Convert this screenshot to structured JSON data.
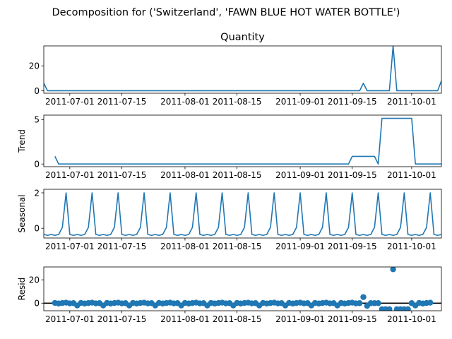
{
  "figure": {
    "suptitle": "Decomposition for ('Switzerland', 'FAWN BLUE HOT WATER BOTTLE')"
  },
  "colors": {
    "line": "#1f77b4",
    "axis": "#000000",
    "zero_line": "#000000"
  },
  "chart_data": [
    {
      "type": "line",
      "title": "Quantity",
      "ylabel": "",
      "x_start": "2011-06-24",
      "x_end": "2011-10-09",
      "xtick_labels": [
        "2011-07-01",
        "2011-07-15",
        "2011-08-01",
        "2011-08-15",
        "2011-09-01",
        "2011-09-15",
        "2011-10-01"
      ],
      "ylim": [
        -2,
        36
      ],
      "ytick_labels": [
        "0",
        "20"
      ],
      "series": [
        {
          "name": "",
          "points": [
            [
              "2011-06-24",
              6
            ],
            [
              "2011-06-25",
              0
            ],
            [
              "2011-09-17",
              0
            ],
            [
              "2011-09-18",
              6
            ],
            [
              "2011-09-19",
              0
            ],
            [
              "2011-09-25",
              0
            ],
            [
              "2011-09-26",
              36
            ],
            [
              "2011-09-27",
              0
            ],
            [
              "2011-10-08",
              0
            ],
            [
              "2011-10-09",
              8
            ]
          ]
        }
      ]
    },
    {
      "type": "line",
      "title": "",
      "ylabel": "Trend",
      "x_start": "2011-06-24",
      "x_end": "2011-10-09",
      "xtick_labels": [
        "2011-07-01",
        "2011-07-15",
        "2011-08-01",
        "2011-08-15",
        "2011-09-01",
        "2011-09-15",
        "2011-10-01"
      ],
      "ylim": [
        -0.3,
        5.5
      ],
      "ytick_labels": [
        "0",
        "5"
      ],
      "series": [
        {
          "name": "",
          "points": [
            [
              "2011-06-27",
              0.86
            ],
            [
              "2011-06-28",
              0
            ],
            [
              "2011-09-14",
              0
            ],
            [
              "2011-09-15",
              0.86
            ],
            [
              "2011-09-21",
              0.86
            ],
            [
              "2011-09-22",
              0
            ],
            [
              "2011-09-23",
              5.14
            ],
            [
              "2011-10-01",
              5.14
            ],
            [
              "2011-10-02",
              0
            ],
            [
              "2011-10-11",
              0
            ],
            [
              "2011-10-12",
              1.14
            ]
          ]
        }
      ]
    },
    {
      "type": "line",
      "title": "",
      "ylabel": "Seasonal",
      "x_start": "2011-06-24",
      "x_end": "2011-10-09",
      "xtick_labels": [
        "2011-07-01",
        "2011-07-15",
        "2011-08-01",
        "2011-08-15",
        "2011-09-01",
        "2011-09-15",
        "2011-10-01"
      ],
      "ylim": [
        -0.55,
        2.2
      ],
      "ytick_labels": [
        "0",
        "2"
      ],
      "weekly_pattern": [
        -0.35,
        -0.4,
        -0.35,
        -0.4,
        -0.35,
        0.05,
        2.0
      ],
      "pattern_start": "2011-06-24",
      "series": [
        {
          "name": ""
        }
      ]
    },
    {
      "type": "scatter",
      "title": "",
      "ylabel": "Resid",
      "x_start": "2011-06-24",
      "x_end": "2011-10-09",
      "xtick_labels": [
        "2011-07-01",
        "2011-07-15",
        "2011-08-01",
        "2011-08-15",
        "2011-09-01",
        "2011-09-15",
        "2011-10-01"
      ],
      "ylim": [
        -6.5,
        31
      ],
      "ytick_labels": [
        "0",
        "20"
      ],
      "zero_line": true,
      "baseline_residual": 0,
      "special_points": [
        [
          "2011-09-18",
          5.2
        ],
        [
          "2011-09-19",
          -2.3
        ],
        [
          "2011-09-20",
          0
        ],
        [
          "2011-09-21",
          0
        ],
        [
          "2011-09-22",
          0
        ],
        [
          "2011-09-23",
          -5.2
        ],
        [
          "2011-09-24",
          -5.2
        ],
        [
          "2011-09-25",
          -5.2
        ],
        [
          "2011-09-26",
          29
        ],
        [
          "2011-09-27",
          -5.2
        ],
        [
          "2011-09-28",
          -5.2
        ],
        [
          "2011-09-29",
          -5.2
        ],
        [
          "2011-09-30",
          -5.2
        ]
      ],
      "dates_from": "2011-06-27",
      "dates_to": "2011-10-06",
      "series": [
        {
          "name": ""
        }
      ]
    }
  ]
}
